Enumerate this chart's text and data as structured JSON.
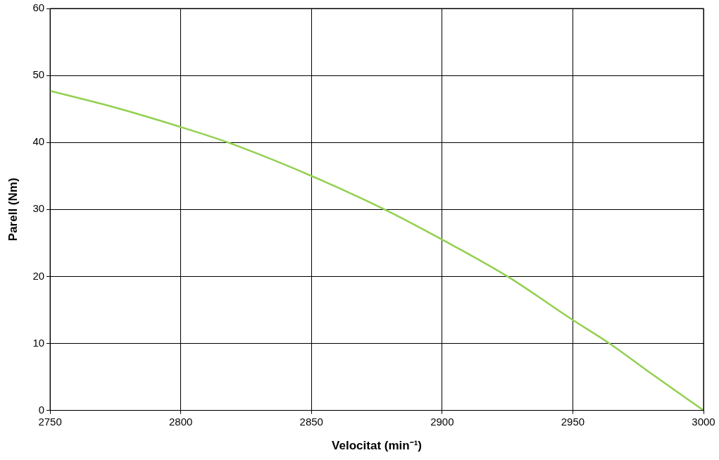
{
  "chart_data": {
    "type": "line",
    "xlabel": "Velocitat (min⁻¹)",
    "ylabel": "Parell (Nm)",
    "x": [
      2750,
      2775,
      2800,
      2818,
      2850,
      2878,
      2900,
      2925,
      2950,
      2964,
      2980,
      3000
    ],
    "series": [
      {
        "color": "#92d050",
        "values": [
          47.7,
          45.2,
          42.3,
          40,
          35,
          30,
          25.5,
          20,
          13.5,
          10,
          5.5,
          0
        ]
      }
    ],
    "xlim": [
      2750,
      3000
    ],
    "xticks": [
      2750,
      2800,
      2850,
      2900,
      2950,
      3000
    ],
    "ylim": [
      0,
      60
    ],
    "yticks": [
      0,
      10,
      20,
      30,
      40,
      50,
      60
    ],
    "grid": true,
    "marker": "none",
    "line_style": "solid",
    "legend": false
  }
}
